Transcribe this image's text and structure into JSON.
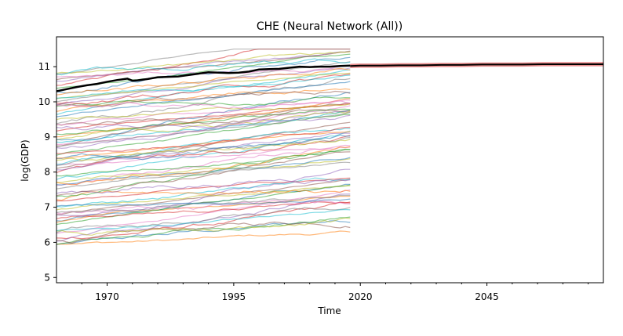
{
  "chart_data": {
    "type": "line",
    "title": "CHE (Neural Network (All))",
    "xlabel": "Time",
    "ylabel": "log(GDP)",
    "xlim": [
      1960,
      2068
    ],
    "ylim": [
      4.85,
      11.85
    ],
    "xticks": [
      1970,
      1995,
      2020,
      2045
    ],
    "yticks": [
      5,
      6,
      7,
      8,
      9,
      10,
      11
    ],
    "grid": false,
    "legend": "none",
    "background_series_count": 80,
    "background_series_x_range": [
      1960,
      2018
    ],
    "background_series_y_range": [
      5.3,
      11.5
    ],
    "highlight_series": {
      "country": "CHE",
      "color": "#000000",
      "x": [
        1960,
        1962,
        1964,
        1966,
        1968,
        1970,
        1972,
        1974,
        1975,
        1976,
        1978,
        1980,
        1982,
        1984,
        1986,
        1988,
        1990,
        1992,
        1994,
        1996,
        1998,
        2000,
        2002,
        2004,
        2006,
        2008,
        2010,
        2012,
        2014,
        2016,
        2018
      ],
      "y": [
        10.3,
        10.36,
        10.42,
        10.47,
        10.51,
        10.57,
        10.62,
        10.66,
        10.6,
        10.61,
        10.65,
        10.7,
        10.71,
        10.72,
        10.76,
        10.8,
        10.84,
        10.83,
        10.82,
        10.83,
        10.86,
        10.92,
        10.93,
        10.94,
        10.97,
        11.0,
        10.99,
        11.0,
        11.0,
        11.02,
        11.03
      ]
    },
    "forecast": {
      "color": "#000000",
      "band_color": "#cc0000",
      "x": [
        2018,
        2020,
        2024,
        2028,
        2032,
        2036,
        2040,
        2044,
        2048,
        2052,
        2056,
        2060,
        2064,
        2068
      ],
      "y": [
        11.02,
        11.03,
        11.03,
        11.04,
        11.04,
        11.05,
        11.05,
        11.06,
        11.06,
        11.06,
        11.07,
        11.07,
        11.07,
        11.07
      ],
      "band_halfwidth": 0.06
    }
  }
}
